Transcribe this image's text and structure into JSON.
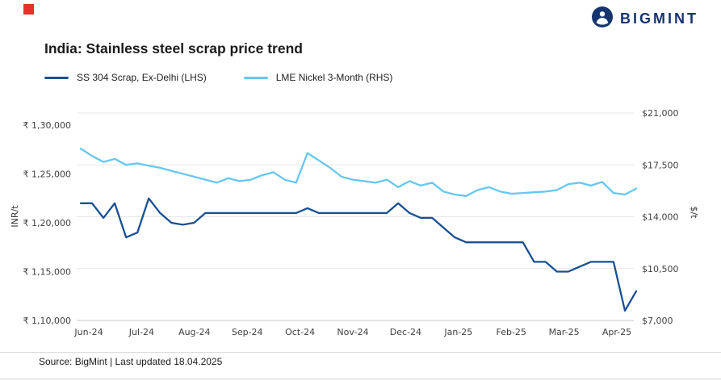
{
  "brand": {
    "name": "BIGMINT",
    "color": "#16356e",
    "accent_color": "#e5322d"
  },
  "title": "India: Stainless steel scrap price trend",
  "footer": {
    "source": "Source: BigMint | Last updated 18.04.2025"
  },
  "chart_data": {
    "type": "line",
    "title": "India: Stainless steel scrap price trend",
    "grid": "horizontal",
    "legend_position": "top-left",
    "x_axis": {
      "tick_labels": [
        "Jun-24",
        "Jul-24",
        "Aug-24",
        "Sep-24",
        "Oct-24",
        "Nov-24",
        "Dec-24",
        "Jan-25",
        "Feb-25",
        "Mar-25",
        "Apr-25"
      ]
    },
    "left_axis": {
      "label": "INR/t",
      "min": 110000,
      "max": 130000,
      "ticks": [
        110000,
        115000,
        120000,
        125000,
        130000
      ],
      "tick_labels": [
        "₹ 1,10,000",
        "₹ 1,15,000",
        "₹ 1,20,000",
        "₹ 1,25,000",
        "₹ 1,30,000"
      ]
    },
    "right_axis": {
      "label": "$/t",
      "min": 7000,
      "max": 21000,
      "ticks": [
        7000,
        10500,
        14000,
        17500,
        21000
      ],
      "tick_labels": [
        "$7,000",
        "$10,500",
        "$14,000",
        "$17,500",
        "$21,000"
      ]
    },
    "series": [
      {
        "name": "SS 304 Scrap, Ex-Delhi (LHS)",
        "axis": "left",
        "color": "#1a5091",
        "values": [
          122000,
          122000,
          120500,
          122000,
          118500,
          119000,
          122500,
          121000,
          120000,
          119800,
          120000,
          121000,
          121000,
          121000,
          121000,
          121000,
          121000,
          121000,
          121000,
          121000,
          121500,
          121000,
          121000,
          121000,
          121000,
          121000,
          121000,
          121000,
          122000,
          121000,
          120500,
          120500,
          119500,
          118500,
          118000,
          118000,
          118000,
          118000,
          118000,
          118000,
          116000,
          116000,
          115000,
          115000,
          115500,
          116000,
          116000,
          116000,
          111000,
          113000
        ]
      },
      {
        "name": "LME Nickel 3-Month (RHS)",
        "axis": "right",
        "color": "#66c7ef",
        "values": [
          18600,
          18100,
          17700,
          17900,
          17500,
          17600,
          17450,
          17300,
          17100,
          16900,
          16700,
          16500,
          16300,
          16600,
          16400,
          16500,
          16800,
          17000,
          16500,
          16300,
          18300,
          17800,
          17300,
          16700,
          16500,
          16400,
          16300,
          16500,
          16000,
          16400,
          16100,
          16300,
          15700,
          15500,
          15400,
          15800,
          16000,
          15700,
          15550,
          15600,
          15650,
          15700,
          15800,
          16200,
          16300,
          16100,
          16350,
          15600,
          15500,
          15900
        ]
      }
    ]
  }
}
